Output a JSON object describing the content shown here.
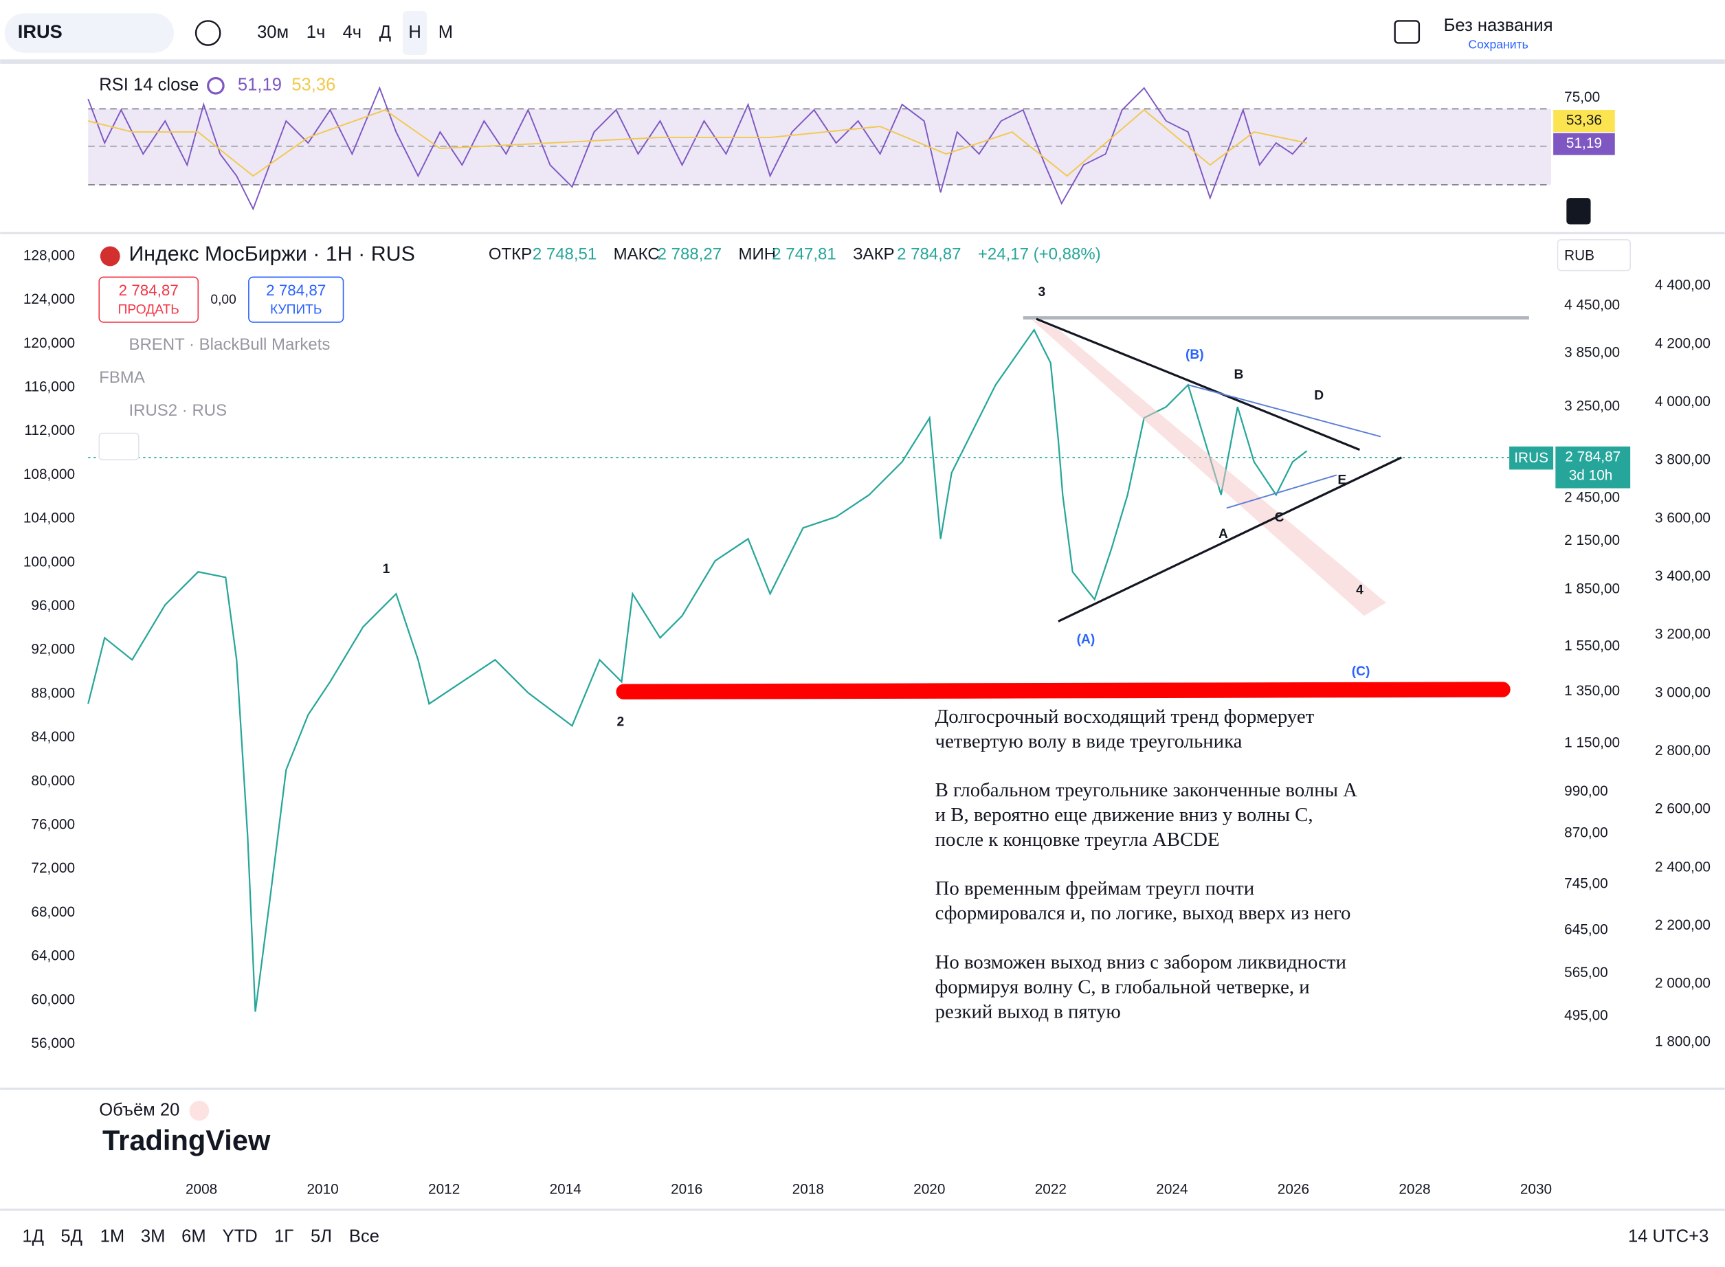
{
  "toolbar": {
    "symbol": "IRUS",
    "intervals": [
      "30м",
      "1ч",
      "4ч",
      "Д",
      "Н",
      "М"
    ],
    "layout_name": "Без названия",
    "save": "Сохранить"
  },
  "rsi": {
    "label": "RSI 14 close",
    "value": "51,19",
    "ma": "53,36",
    "axis_label": "75,00",
    "tag_ma": "53,36",
    "tag_value": "51,19"
  },
  "legend": {
    "title": "Индекс МосБиржи · 1Н · RUS",
    "ohlc": [
      [
        "ОТКР",
        "2 748,51"
      ],
      [
        "МАКС",
        "2 788,27"
      ],
      [
        "МИН",
        "2 747,81"
      ],
      [
        "ЗАКР",
        "2 784,87"
      ]
    ],
    "change": "+24,17 (+0,88%)",
    "sell_price": "2 784,87",
    "sell": "ПРОДАТЬ",
    "spread": "0,00",
    "buy_price": "2 784,87",
    "buy": "КУПИТЬ",
    "overlays": [
      "BRENT · BlackBull Markets",
      "FBMA",
      "IRUS2 · RUS"
    ]
  },
  "left_axis": [
    "128,000",
    "124,000",
    "120,000",
    "116,000",
    "112,000",
    "108,000",
    "104,000",
    "100,000",
    "96,000",
    "92,000",
    "88,000",
    "84,000",
    "80,000",
    "76,000",
    "72,000",
    "68,000",
    "64,000",
    "60,000",
    "56,000"
  ],
  "mid_axis": [
    [
      "4 450,00",
      278
    ],
    [
      "3 850,00",
      321
    ],
    [
      "3 250,00",
      370
    ],
    [
      "2 450,00",
      453
    ],
    [
      "2 150,00",
      492
    ],
    [
      "1 850,00",
      536
    ],
    [
      "1 550,00",
      588
    ],
    [
      "1 350,00",
      629
    ],
    [
      "1 150,00",
      676
    ],
    [
      "990,00",
      720
    ],
    [
      "870,00",
      758
    ],
    [
      "745,00",
      804
    ],
    [
      "645,00",
      846
    ],
    [
      "565,00",
      885
    ],
    [
      "495,00",
      924
    ]
  ],
  "right_axis": [
    "4 400,00",
    "4 200,00",
    "4 000,00",
    "3 800,00",
    "3 600,00",
    "3 400,00",
    "3 200,00",
    "3 000,00",
    "2 800,00",
    "2 600,00",
    "2 400,00",
    "2 200,00",
    "2 000,00",
    "1 800,00"
  ],
  "currency": "RUB",
  "price_tag": {
    "symbol": "IRUS",
    "price": "2 784,87",
    "countdown": "3d 10h"
  },
  "waves": [
    [
      "3",
      947,
      266
    ],
    [
      "1",
      351,
      518
    ],
    [
      "2",
      564,
      657
    ],
    [
      "4",
      1236,
      537
    ],
    [
      "B",
      1126,
      341
    ],
    [
      "(B)",
      1086,
      323
    ],
    [
      "D",
      1199,
      360
    ],
    [
      "A",
      1112,
      486
    ],
    [
      "C",
      1163,
      471
    ],
    [
      "E",
      1220,
      437
    ],
    [
      "(A)",
      987,
      582
    ],
    [
      "(C)",
      1237,
      611
    ]
  ],
  "annotation": [
    [
      "Долгосрочный восходящий тренд формерует",
      "четвертую волу в виде треугольника"
    ],
    [
      "В глобальном треугольнике законченные волны А",
      "и В, вероятно еще движение вниз у волны С,",
      "после к концовке треугла ABCDE"
    ],
    [
      "По временным фреймам треугл почти",
      "сформировался и, по логике, выход вверх из него"
    ],
    [
      "Но возможен выход вниз с забором ликвидности",
      "формируя волну С, в глобальной четверке, и",
      "резкий выход в пятую"
    ]
  ],
  "volume": "Объём 20",
  "brand": "TradingView",
  "years": [
    "2008",
    "2010",
    "2012",
    "2014",
    "2016",
    "2018",
    "2020",
    "2022",
    "2024",
    "2026",
    "2028",
    "2030"
  ],
  "ranges": [
    "1Д",
    "5Д",
    "1М",
    "3М",
    "6М",
    "YTD",
    "1Г",
    "5Л",
    "Все"
  ],
  "timezone": "14 UTC+3"
}
